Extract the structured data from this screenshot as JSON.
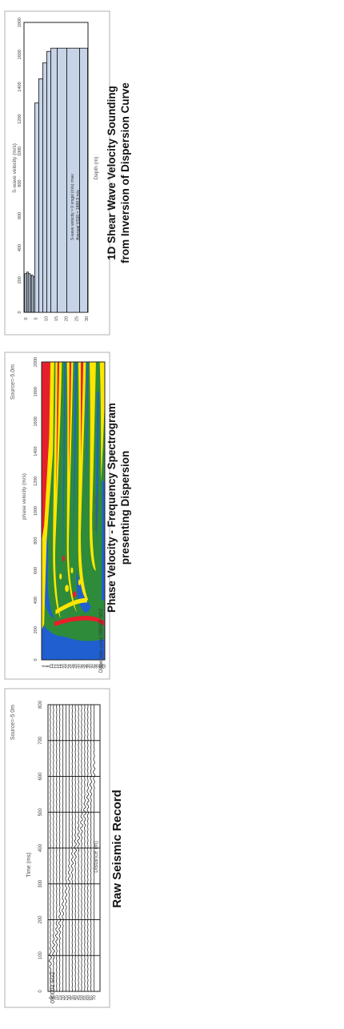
{
  "panels": {
    "seismic": {
      "caption": "Raw Seismic Record",
      "source_label": "Source=-5 0m",
      "time_axis_label": "Time (ms)",
      "time_ticks": [
        "0",
        "100",
        "200",
        "300",
        "400",
        "500",
        "600",
        "700",
        "800"
      ],
      "distance_axis_label": "Distance (m)",
      "distance_ticks": [
        "0",
        "5",
        "10",
        "15",
        "20",
        "25",
        "30",
        "35",
        "40",
        "45",
        "50",
        "55",
        "60",
        "65",
        "70"
      ],
      "record_id": "090002 SG2"
    },
    "spectrogram": {
      "caption_line1": "Phase Velocity - Frequency Spectrogram",
      "caption_line2": "presenting Dispersion",
      "source_label": "Source=-5.0m",
      "velocity_axis_label": "phase velocity (m/s)",
      "velocity_ticks": [
        "0",
        "200",
        "400",
        "600",
        "800",
        "1000",
        "1200",
        "1400",
        "1600",
        "1800",
        "2000"
      ],
      "frequency_axis_label": "Frequency (Hz)",
      "frequency_ticks": [
        "4",
        "6",
        "8",
        "10",
        "12",
        "14",
        "16",
        "18",
        "20",
        "22",
        "24",
        "26",
        "28",
        "30",
        "32",
        "34",
        "36",
        "38",
        "40",
        "42",
        "44",
        "46",
        "48",
        "50"
      ],
      "curve_label": "Dispersion curve 090002 SG2",
      "colors": {
        "green": "#2e8b3a",
        "yellow": "#ffe600",
        "red": "#e6202a",
        "blue": "#1f5fd0",
        "orange": "#f08a1c"
      }
    },
    "velocity": {
      "caption_line1": "1D Shear Wave Velocity Sounding",
      "caption_line2": "from Inversion of Dispersion Curve",
      "velocity_axis_label": "S-wave velocity (m/s)",
      "velocity_ticks": [
        "0",
        "200",
        "400",
        "600",
        "800",
        "1000",
        "1200",
        "1400",
        "1600",
        "1800"
      ],
      "depth_axis_label": "Depth (m)",
      "depth_ticks": [
        "0",
        "5",
        "10",
        "15",
        "20",
        "25",
        "30"
      ],
      "legend_line1": "S-wave velocity = 0 vmgsl (m/s) rmax",
      "legend_line2": "Average VS30 = 1888.9 m/s",
      "bar_fill": "#c7d4e8"
    }
  }
}
